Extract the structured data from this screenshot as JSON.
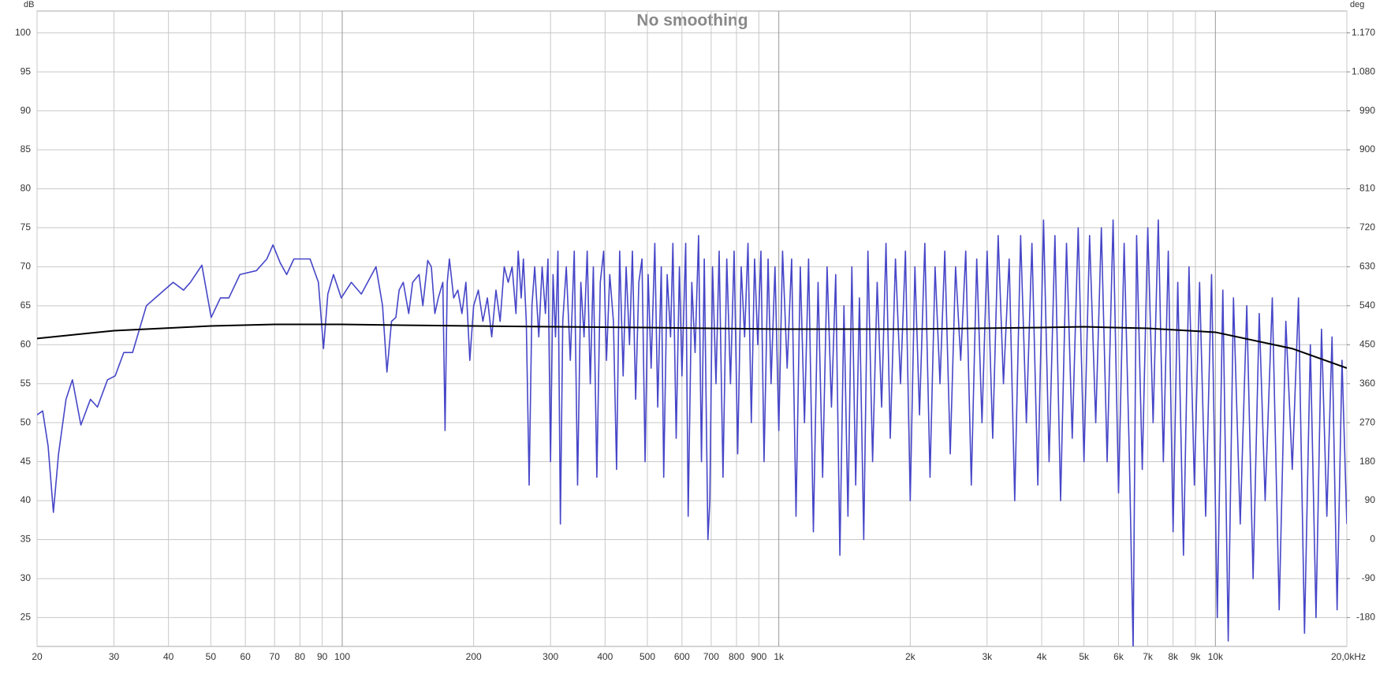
{
  "chart_data": {
    "type": "line",
    "title": "No smoothing",
    "y_label": "dB",
    "y2_label": "deg",
    "xscale": "log",
    "grid": true,
    "xlim": [
      20,
      20000
    ],
    "xticks": [
      20,
      30,
      40,
      50,
      60,
      70,
      80,
      90,
      100,
      200,
      300,
      400,
      500,
      600,
      700,
      800,
      900,
      {
        "value": 1000,
        "label": "1k"
      },
      {
        "value": 2000,
        "label": "2k"
      },
      {
        "value": 3000,
        "label": "3k"
      },
      {
        "value": 4000,
        "label": "4k"
      },
      {
        "value": 5000,
        "label": "5k"
      },
      {
        "value": 6000,
        "label": "6k"
      },
      {
        "value": 7000,
        "label": "7k"
      },
      {
        "value": 8000,
        "label": "8k"
      },
      {
        "value": 9000,
        "label": "9k"
      },
      {
        "value": 10000,
        "label": "10k"
      },
      {
        "value": 20000,
        "label": "20,0kHz"
      }
    ],
    "ylim": [
      21.3,
      102.8
    ],
    "yticks": [
      25,
      30,
      35,
      40,
      45,
      50,
      55,
      60,
      65,
      70,
      75,
      80,
      85,
      90,
      95,
      100
    ],
    "y2lim": [
      -246.6,
      1220.4
    ],
    "y2ticks": [
      -180,
      -90,
      0,
      90,
      180,
      270,
      360,
      450,
      540,
      630,
      720,
      810,
      900,
      990,
      {
        "value": 1080,
        "label": "1.080"
      },
      {
        "value": 1170,
        "label": "1.170"
      }
    ],
    "series": [
      {
        "color": "#4646c8",
        "x": [
          20,
          20.6,
          21.2,
          21.8,
          22.4,
          23.3,
          24.1,
          25.2,
          26.5,
          27.5,
          29.0,
          30.2,
          31.6,
          33.1,
          35.6,
          38.2,
          41.0,
          43.3,
          44.9,
          47.7,
          50.1,
          52.6,
          55.0,
          58.3,
          63.6,
          67.2,
          69.4,
          72.1,
          74.6,
          77.5,
          84.4,
          88.2,
          90.6,
          92.7,
          95.5,
          99.5,
          104.9,
          110.6,
          119.5,
          123.7,
          126.6,
          129.7,
          132.7,
          135,
          138,
          142,
          145,
          150,
          153,
          157,
          160,
          163,
          166,
          170,
          172,
          174,
          176,
          180,
          184,
          188,
          192,
          196,
          200,
          205,
          210,
          215,
          220,
          225,
          230,
          235,
          240,
          245,
          250,
          253,
          257,
          260,
          264,
          268,
          272,
          276,
          282,
          287,
          292,
          296,
          300,
          304,
          308,
          312,
          316,
          320,
          326,
          333,
          340,
          346,
          352,
          358,
          364,
          370,
          376,
          383,
          390,
          397,
          403,
          410,
          418,
          425,
          432,
          440,
          447,
          455,
          462,
          470,
          478,
          486,
          494,
          502,
          510,
          520,
          528,
          538,
          545,
          555,
          565,
          572,
          582,
          592,
          600,
          612,
          620,
          632,
          643,
          655,
          665,
          675,
          688,
          695,
          705,
          718,
          730,
          745,
          760,
          775,
          790,
          805,
          820,
          835,
          850,
          865,
          880,
          895,
          910,
          925,
          945,
          960,
          980,
          1000,
          1020,
          1045,
          1070,
          1095,
          1120,
          1145,
          1170,
          1200,
          1230,
          1260,
          1290,
          1320,
          1350,
          1380,
          1410,
          1440,
          1470,
          1500,
          1530,
          1565,
          1600,
          1640,
          1680,
          1720,
          1760,
          1800,
          1850,
          1900,
          1950,
          2000,
          2050,
          2100,
          2160,
          2220,
          2280,
          2340,
          2400,
          2470,
          2540,
          2610,
          2680,
          2760,
          2840,
          2920,
          3000,
          3090,
          3180,
          3270,
          3370,
          3470,
          3580,
          3690,
          3800,
          3920,
          4040,
          4160,
          4290,
          4420,
          4560,
          4700,
          4850,
          5000,
          5150,
          5320,
          5480,
          5650,
          5830,
          6000,
          6180,
          6350,
          6480,
          6600,
          6800,
          7000,
          7200,
          7400,
          7600,
          7800,
          8000,
          8200,
          8450,
          8700,
          8950,
          9200,
          9500,
          9800,
          10100,
          10400,
          10700,
          11000,
          11400,
          11800,
          12200,
          12600,
          13000,
          13500,
          14000,
          14500,
          15000,
          15500,
          16000,
          16500,
          17000,
          17500,
          18000,
          18500,
          19000,
          19500,
          20000
        ],
        "values": [
          51,
          51.5,
          47,
          38.5,
          46,
          53,
          55.5,
          49.7,
          53,
          52,
          55.5,
          56,
          59,
          59,
          65,
          66.5,
          68,
          67,
          68,
          70.2,
          63.5,
          66,
          66,
          69,
          69.5,
          71,
          72.8,
          70.5,
          69,
          71,
          71,
          68,
          59.5,
          66.5,
          69,
          66,
          68,
          66.5,
          70,
          65,
          56.5,
          63,
          63.5,
          67,
          68,
          64,
          68,
          69,
          65,
          70.8,
          70,
          64,
          66,
          68,
          49,
          68,
          71,
          66,
          67,
          64,
          68,
          58,
          65,
          67,
          63,
          66,
          61,
          67,
          63,
          70,
          68,
          70,
          64,
          72,
          66,
          71,
          63,
          42,
          65,
          70,
          61,
          70,
          64,
          71,
          45,
          69,
          61,
          72,
          37,
          63,
          70,
          58,
          72,
          42,
          68,
          61,
          72,
          55,
          70,
          43,
          68,
          72,
          58,
          69,
          63,
          44,
          72,
          56,
          70,
          60,
          72,
          53,
          68,
          71,
          45,
          69,
          57,
          73,
          52,
          70,
          43,
          69,
          61,
          73,
          48,
          70,
          56,
          73,
          38,
          68,
          59,
          74,
          45,
          71,
          35,
          40,
          70,
          55,
          72,
          43,
          71,
          55,
          72,
          46,
          70,
          61,
          73,
          50,
          71,
          60,
          72,
          45,
          71,
          55,
          70,
          49,
          72,
          57,
          71,
          38,
          70,
          50,
          71,
          36,
          68,
          43,
          70,
          52,
          69,
          33,
          65,
          38,
          70,
          42,
          66,
          35,
          72,
          45,
          68,
          52,
          73,
          48,
          71,
          55,
          72,
          40,
          70,
          51,
          73,
          43,
          70,
          55,
          72,
          46,
          70,
          58,
          72,
          42,
          71,
          50,
          72,
          48,
          74,
          55,
          71,
          40,
          74,
          50,
          73,
          42,
          76,
          45,
          74,
          40,
          73,
          48,
          75,
          45,
          74,
          50,
          75,
          45,
          76,
          41,
          73,
          46,
          21,
          74,
          44,
          75,
          50,
          76,
          45,
          72,
          36,
          68,
          33,
          70,
          42,
          68,
          38,
          69,
          25,
          67,
          22,
          66,
          37,
          65,
          30,
          64,
          40,
          66,
          26,
          63,
          44,
          66,
          23,
          60,
          25,
          62,
          38,
          61,
          26,
          58,
          37
        ]
      },
      {
        "color": "#000000",
        "x": [
          20,
          30,
          50,
          70,
          100,
          200,
          500,
          1000,
          2000,
          4000,
          5000,
          7000,
          10000,
          15000,
          20000
        ],
        "values": [
          60.8,
          61.8,
          62.4,
          62.6,
          62.6,
          62.4,
          62.2,
          62.0,
          62.0,
          62.2,
          62.3,
          62.1,
          61.6,
          59.5,
          57.0
        ]
      }
    ]
  }
}
